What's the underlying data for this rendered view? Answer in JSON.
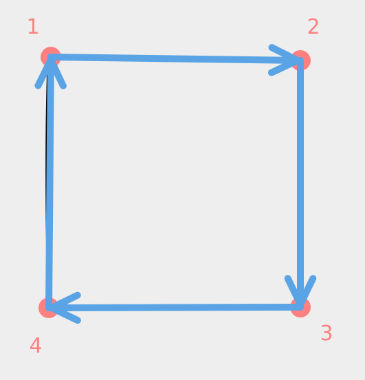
{
  "diagram": {
    "type": "directed-cycle",
    "colors": {
      "background": "#eeeeee",
      "vertex": "#ff8080",
      "edge": "#5aa4e6",
      "stroke": "#000000",
      "label": "#ff8080"
    },
    "vertices": [
      {
        "id": "1",
        "label": "1"
      },
      {
        "id": "2",
        "label": "2"
      },
      {
        "id": "3",
        "label": "3"
      },
      {
        "id": "4",
        "label": "4"
      }
    ],
    "edges": [
      {
        "from": "1",
        "to": "2"
      },
      {
        "from": "2",
        "to": "3"
      },
      {
        "from": "3",
        "to": "4"
      },
      {
        "from": "4",
        "to": "1"
      }
    ]
  }
}
